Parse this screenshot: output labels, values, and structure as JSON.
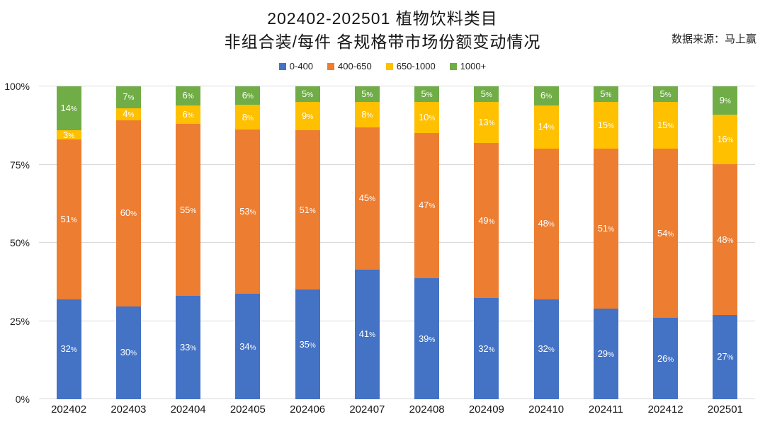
{
  "title": {
    "line1": "202402-202501 植物饮料类目",
    "line2": "非组合装/每件 各规格带市场份额变动情况"
  },
  "source": "数据来源：马上赢",
  "chart_data": {
    "type": "bar",
    "stacked": true,
    "orientation": "vertical",
    "title": "202402-202501 植物饮料类目 非组合装/每件 各规格带市场份额变动情况",
    "categories": [
      "202402",
      "202403",
      "202404",
      "202405",
      "202406",
      "202407",
      "202408",
      "202409",
      "202410",
      "202411",
      "202412",
      "202501"
    ],
    "series": [
      {
        "name": "0-400",
        "color": "#4472C4",
        "values": [
          32,
          30,
          33,
          34,
          35,
          41,
          39,
          32,
          32,
          29,
          26,
          27
        ]
      },
      {
        "name": "400-650",
        "color": "#ED7D31",
        "values": [
          51,
          60,
          55,
          53,
          51,
          45,
          47,
          49,
          48,
          51,
          54,
          48
        ]
      },
      {
        "name": "650-1000",
        "color": "#FFC000",
        "values": [
          3,
          4,
          6,
          8,
          9,
          8,
          10,
          13,
          14,
          15,
          15,
          16
        ]
      },
      {
        "name": "1000+",
        "color": "#70AD47",
        "values": [
          14,
          7,
          6,
          6,
          5,
          5,
          5,
          5,
          6,
          5,
          5,
          9
        ]
      }
    ],
    "value_label_suffix": "%",
    "value_label_color": "#FFFFFF",
    "y_ticks": [
      0,
      25,
      50,
      75,
      100
    ],
    "y_tick_suffix": "%",
    "ylim": [
      0,
      100
    ],
    "grid": true,
    "gridline_color": "#D9D9D9",
    "legend_position": "top"
  }
}
